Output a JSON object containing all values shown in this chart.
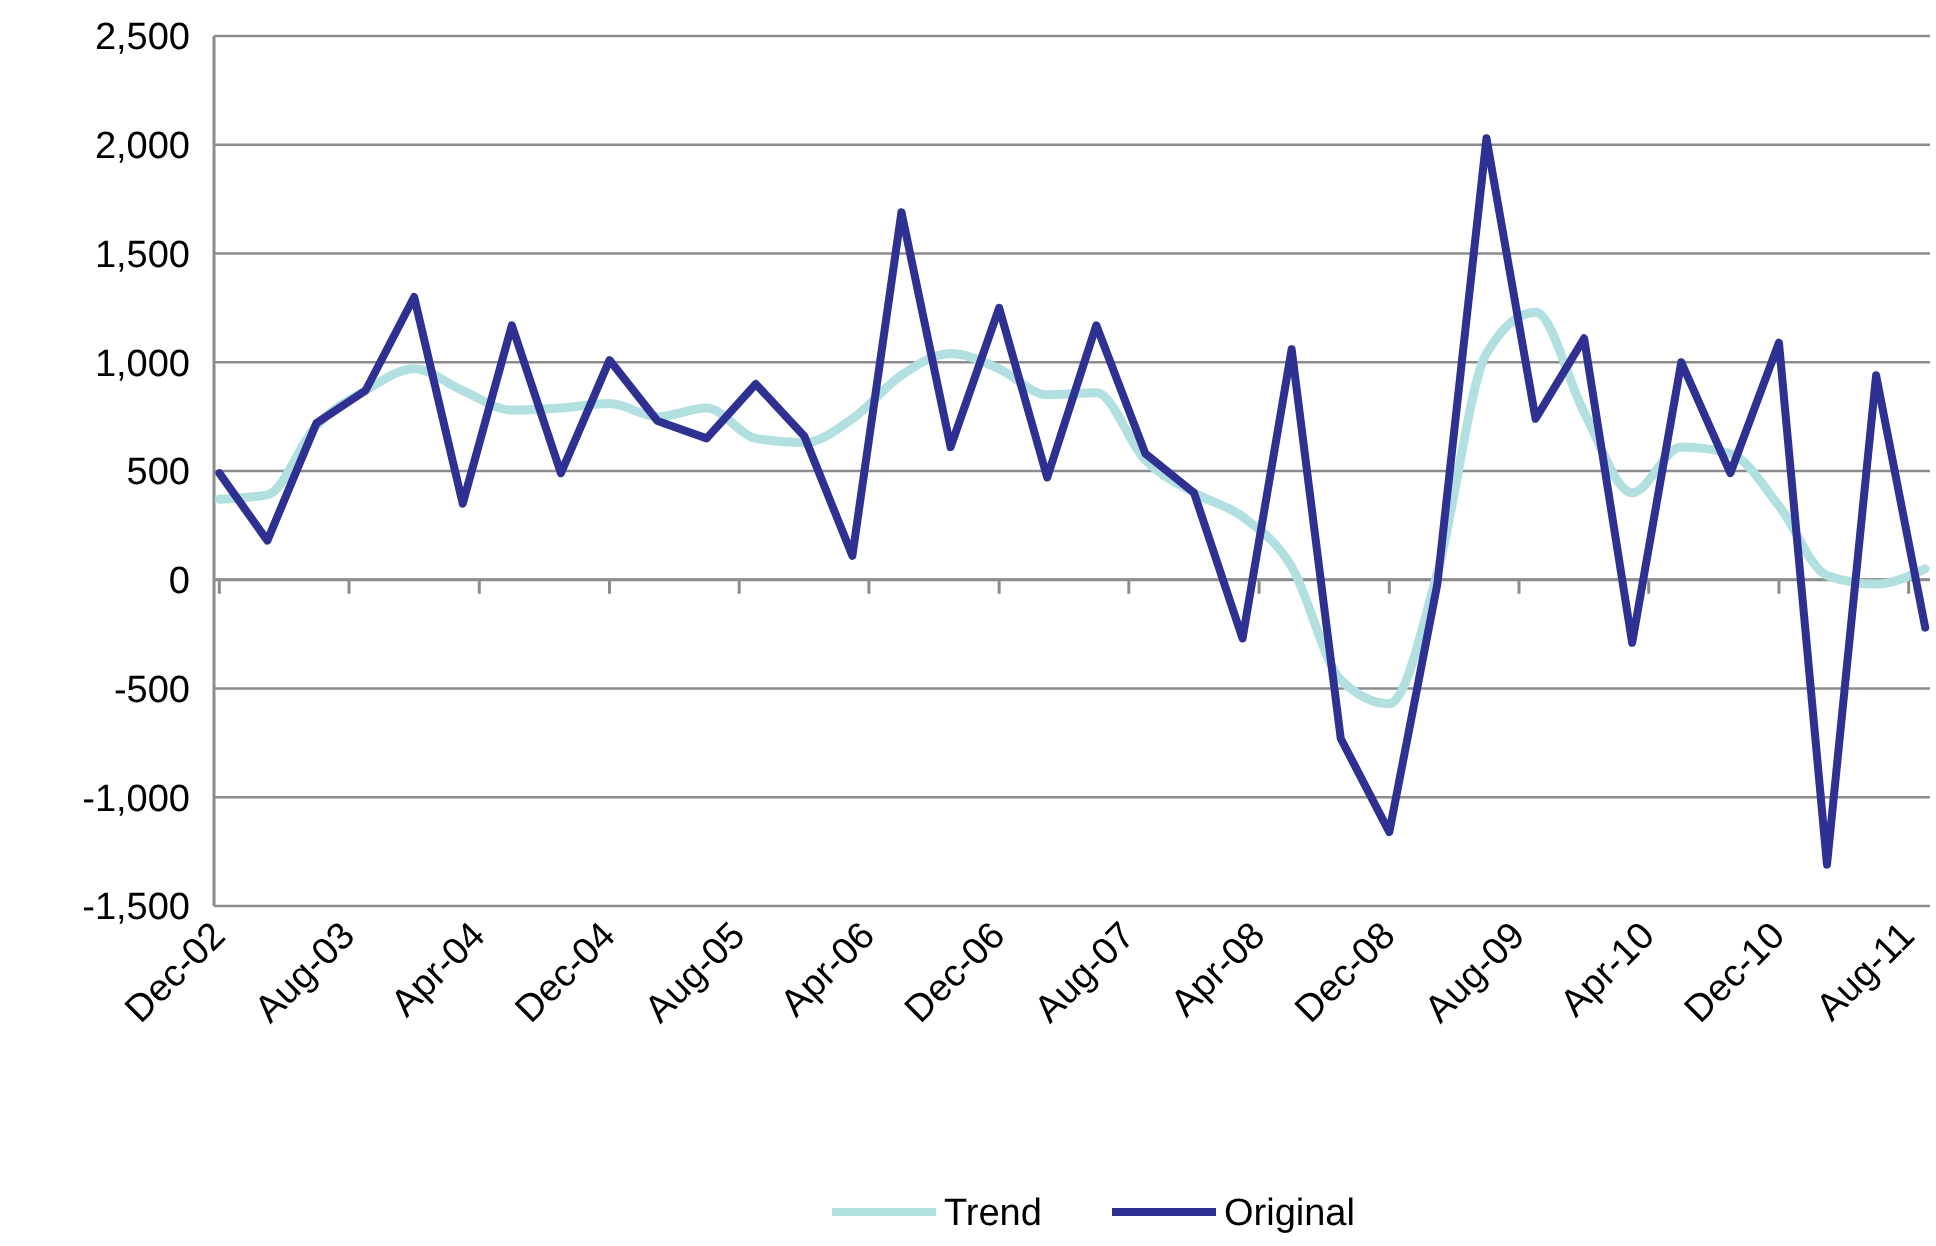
{
  "chart_data": {
    "type": "line",
    "x": [
      "2002-12",
      "2003-03",
      "2003-06",
      "2003-09",
      "2003-12",
      "2004-03",
      "2004-06",
      "2004-09",
      "2004-12",
      "2005-03",
      "2005-06",
      "2005-09",
      "2005-12",
      "2006-03",
      "2006-06",
      "2006-09",
      "2006-12",
      "2007-03",
      "2007-06",
      "2007-09",
      "2007-12",
      "2008-03",
      "2008-06",
      "2008-09",
      "2008-12",
      "2009-03",
      "2009-06",
      "2009-09",
      "2009-12",
      "2010-03",
      "2010-06",
      "2010-09",
      "2010-12",
      "2011-03",
      "2011-06",
      "2011-09"
    ],
    "series": [
      {
        "name": "Trend",
        "color": "#b2dfe0",
        "values": [
          370,
          390,
          710,
          870,
          970,
          870,
          780,
          790,
          810,
          750,
          790,
          650,
          630,
          740,
          940,
          1040,
          970,
          850,
          860,
          550,
          400,
          290,
          60,
          -460,
          -570,
          30,
          1040,
          1230,
          770,
          400,
          610,
          580,
          340,
          20,
          -20,
          50
        ]
      },
      {
        "name": "Original",
        "color": "#2e3192",
        "values": [
          490,
          180,
          720,
          870,
          1300,
          350,
          1170,
          490,
          1010,
          730,
          650,
          900,
          660,
          110,
          1690,
          610,
          1250,
          470,
          1170,
          580,
          400,
          -270,
          1060,
          -730,
          -1160,
          -20,
          2030,
          740,
          1110,
          -290,
          1000,
          490,
          1090,
          -1310,
          940,
          -220
        ]
      }
    ],
    "xlim": [
      "2002-11-21",
      "2011-09-10"
    ],
    "xticks": [
      {
        "value": "2002-12",
        "label": "Dec-02"
      },
      {
        "value": "2003-08",
        "label": "Aug-03"
      },
      {
        "value": "2004-04",
        "label": "Apr-04"
      },
      {
        "value": "2004-12",
        "label": "Dec-04"
      },
      {
        "value": "2005-08",
        "label": "Aug-05"
      },
      {
        "value": "2006-04",
        "label": "Apr-06"
      },
      {
        "value": "2006-12",
        "label": "Dec-06"
      },
      {
        "value": "2007-08",
        "label": "Aug-07"
      },
      {
        "value": "2008-04",
        "label": "Apr-08"
      },
      {
        "value": "2008-12",
        "label": "Dec-08"
      },
      {
        "value": "2009-08",
        "label": "Aug-09"
      },
      {
        "value": "2010-04",
        "label": "Apr-10"
      },
      {
        "value": "2010-12",
        "label": "Dec-10"
      },
      {
        "value": "2011-08",
        "label": "Aug-11"
      }
    ],
    "ylim": [
      -1500,
      2500
    ],
    "yticks": [
      {
        "value": -1500,
        "label": "-1,500"
      },
      {
        "value": -1000,
        "label": "-1,000"
      },
      {
        "value": -500,
        "label": "-500"
      },
      {
        "value": 0,
        "label": "0"
      },
      {
        "value": 500,
        "label": "500"
      },
      {
        "value": 1000,
        "label": "1,000"
      },
      {
        "value": 1500,
        "label": "1,500"
      },
      {
        "value": 2000,
        "label": "2,000"
      },
      {
        "value": 2500,
        "label": "2,500"
      }
    ],
    "grid": "y",
    "legend": "bottom",
    "marker": "none",
    "line_style": "solid"
  }
}
